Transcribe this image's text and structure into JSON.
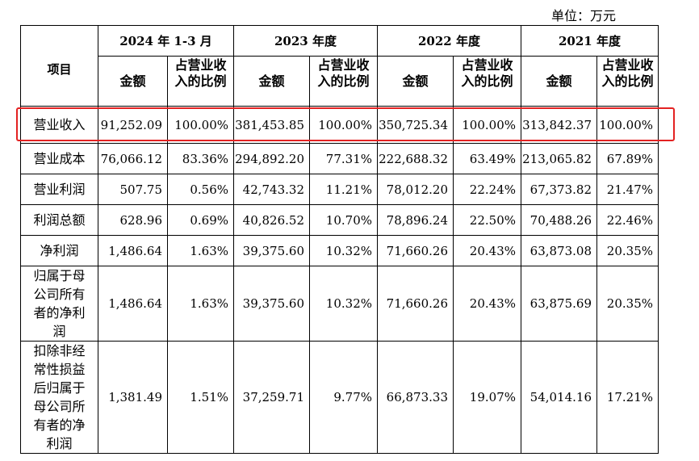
{
  "unit": "单位：万元",
  "header": {
    "item": "项目",
    "periods": [
      "2024 年 1-3 月",
      "2023 年度",
      "2022 年度",
      "2021 年度"
    ],
    "amount": "金额",
    "ratio": "占营业收入的比例"
  },
  "rows": [
    {
      "label": "营业收入",
      "values": [
        "91,252.09",
        "100.00%",
        "381,453.85",
        "100.00%",
        "350,725.34",
        "100.00%",
        "313,842.37",
        "100.00%"
      ]
    },
    {
      "label": "营业成本",
      "values": [
        "76,066.12",
        "83.36%",
        "294,892.20",
        "77.31%",
        "222,688.32",
        "63.49%",
        "213,065.82",
        "67.89%"
      ]
    },
    {
      "label": "营业利润",
      "values": [
        "507.75",
        "0.56%",
        "42,743.32",
        "11.21%",
        "78,012.20",
        "22.24%",
        "67,373.82",
        "21.47%"
      ]
    },
    {
      "label": "利润总额",
      "values": [
        "628.96",
        "0.69%",
        "40,826.52",
        "10.70%",
        "78,896.24",
        "22.50%",
        "70,488.26",
        "22.46%"
      ]
    },
    {
      "label": "净利润",
      "values": [
        "1,486.64",
        "1.63%",
        "39,375.60",
        "10.32%",
        "71,660.26",
        "20.43%",
        "63,873.08",
        "20.35%"
      ]
    },
    {
      "label": "归属于母公司所有者的净利润",
      "values": [
        "1,486.64",
        "1.63%",
        "39,375.60",
        "10.32%",
        "71,660.26",
        "20.43%",
        "63,875.69",
        "20.35%"
      ]
    },
    {
      "label": "扣除非经常性损益后归属于母公司所有者的净利润",
      "values": [
        "1,381.49",
        "1.51%",
        "37,259.71",
        "9.77%",
        "66,873.33",
        "19.07%",
        "54,014.16",
        "17.21%"
      ]
    }
  ],
  "highlight_color": "#e32222"
}
